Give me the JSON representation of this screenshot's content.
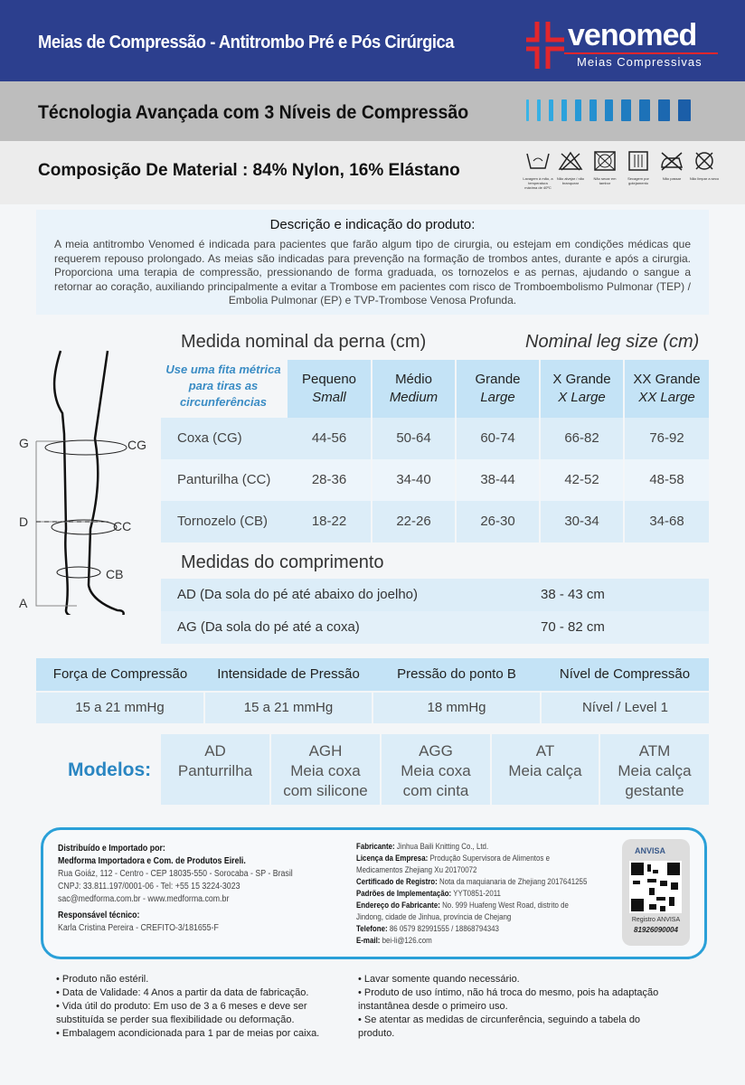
{
  "header": {
    "title": "Meias de Compressão - Antitrombo Pré e Pós Cirúrgica",
    "brand": "venomed",
    "brand_sub": "Meias Compressivas",
    "brand_color": "#e2262c",
    "bg_color": "#2c3f8e"
  },
  "tech": {
    "title": "Técnologia Avançada com 3 Níveis de Compressão"
  },
  "composition": {
    "title": "Composição De Material : 84% Nylon, 16% Elástano",
    "care_icons": [
      {
        "icon": "hand-wash-icon",
        "label": "Lavagem à mão, a temperatura máxima de 40ºC"
      },
      {
        "icon": "no-bleach-icon",
        "label": "Não alvejar / não branquear"
      },
      {
        "icon": "no-tumble-dry-icon",
        "label": "Não secar em tambor"
      },
      {
        "icon": "drip-dry-icon",
        "label": "Secagem por gotejamento"
      },
      {
        "icon": "no-iron-icon",
        "label": "Não passar"
      },
      {
        "icon": "no-dry-clean-icon",
        "label": "Não limpar a seco"
      }
    ]
  },
  "description": {
    "title": "Descrição e indicação do produto:",
    "body": "A meia antitrombo Venomed é indicada para pacientes que farão algum tipo de cirurgia, ou estejam em condições médicas que requerem repouso prolongado. As meias são indicadas para prevenção na formação de trombos antes, durante e após a cirurgia. Proporciona uma terapia de compressão, pressionando de forma graduada, os tornozelos e as pernas, ajudando o sangue a retornar ao coração, auxiliando principalmente a evitar a Trombose em pacientes com risco de Tromboembolismo Pulmonar (TEP) / Embolia Pulmonar (EP) e TVP-Trombose Venosa Profunda."
  },
  "diagram": {
    "labels": {
      "g": "G",
      "d": "D",
      "a": "A",
      "cg": "CG",
      "cc": "CC",
      "cb": "CB"
    }
  },
  "sizes": {
    "title_pt": "Medida nominal da perna (cm)",
    "title_en": "Nominal leg size (cm)",
    "tape_note": "Use uma fita métrica para tiras as circunferências",
    "columns": [
      {
        "pt": "Pequeno",
        "en": "Small"
      },
      {
        "pt": "Médio",
        "en": "Medium"
      },
      {
        "pt": "Grande",
        "en": "Large"
      },
      {
        "pt": "X Grande",
        "en": "X Large"
      },
      {
        "pt": "XX Grande",
        "en": "XX Large"
      }
    ],
    "rows": [
      {
        "label": "Coxa (CG)",
        "values": [
          "44-56",
          "50-64",
          "60-74",
          "66-82",
          "76-92"
        ]
      },
      {
        "label": "Panturilha (CC)",
        "values": [
          "28-36",
          "34-40",
          "38-44",
          "42-52",
          "48-58"
        ]
      },
      {
        "label": "Tornozelo (CB)",
        "values": [
          "18-22",
          "22-26",
          "26-30",
          "30-34",
          "34-68"
        ]
      }
    ]
  },
  "lengths": {
    "title": "Medidas do comprimento",
    "rows": [
      {
        "label": "AD (Da sola do pé até abaixo do joelho)",
        "value": "38 - 43 cm"
      },
      {
        "label": "AG (Da sola do pé até a coxa)",
        "value": "70 - 82 cm"
      }
    ]
  },
  "compression": {
    "headers": [
      "Força de Compressão",
      "Intensidade de Pressão",
      "Pressão do ponto B",
      "Nível de Compressão"
    ],
    "values": [
      "15 a 21 mmHg",
      "15 a 21 mmHg",
      "18 mmHg",
      "Nível / Level 1"
    ]
  },
  "models": {
    "label": "Modelos:",
    "items": [
      [
        "AD",
        "Panturrilha"
      ],
      [
        "AGH",
        "Meia coxa",
        "com silicone"
      ],
      [
        "AGG",
        "Meia coxa",
        "com cinta"
      ],
      [
        "AT",
        "Meia calça"
      ],
      [
        "ATM",
        "Meia calça",
        "gestante"
      ]
    ]
  },
  "info": {
    "dist_title": "Distribuído e Importado por:",
    "company": "Medforma Importadora e Com. de Produtos Eireli.",
    "address": "Rua Goiáz, 112 - Centro - CEP 18035-550 - Sorocaba - SP - Brasil",
    "cnpj": "CNPJ: 33.811.197/0001-06 - Tel: +55 15 3224-3023",
    "contact": "sac@medforma.com.br - www.medforma.com.br",
    "tech_title": "Responsável técnico:",
    "tech_name": "Karla Cristina Pereira - CREFITO-3/181655-F",
    "maker": [
      {
        "k": "Fabricante:",
        "v": "Jinhua Baili Knitting Co., Ltd."
      },
      {
        "k": "Licença da Empresa:",
        "v": "Produção Supervisora de Alimentos e Medicamentos Zhejiang Xu 20170072"
      },
      {
        "k": "Certificado de Registro:",
        "v": "Nota da maquianaria de Zhejiang 2017641255"
      },
      {
        "k": "Padrões de Implementação:",
        "v": "YYT0851-2011"
      },
      {
        "k": "Endereço do Fabricante:",
        "v": "No. 999 Huafeng West Road, distrito de Jindong, cidade de Jinhua, província de Chejang"
      },
      {
        "k": "Telefone:",
        "v": "86 0579 82991555 / 18868794343"
      },
      {
        "k": "E-mail:",
        "v": "bei-li@126.com"
      }
    ],
    "anvisa_logo": "ANVISA",
    "anvisa_reg_label": "Registro ANVISA",
    "anvisa_reg": "81926090004"
  },
  "notes_left": [
    "• Produto não estéril.",
    "• Data de Validade: 4 Anos a partir da data de fabricação.",
    "• Vida útil do produto: Em uso de 3 a 6 meses e deve ser substituída se perder sua flexibilidade ou deformação.",
    "• Embalagem acondicionada para 1 par de meias por caixa."
  ],
  "notes_right": [
    "• Lavar somente quando necessário.",
    "• Produto de uso íntimo, não há troca do mesmo, pois ha adaptação instantânea desde o primeiro uso.",
    "• Se atentar as medidas de circunferência, seguindo a tabela do produto."
  ]
}
